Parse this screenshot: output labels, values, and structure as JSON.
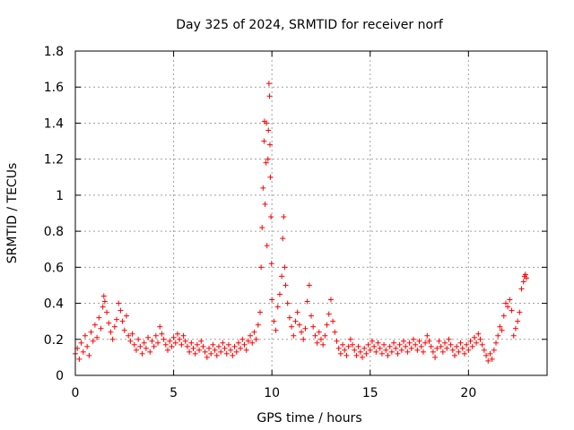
{
  "chart_data": {
    "type": "scatter",
    "title": "Day 325 of 2024, SRMTID for receiver norf",
    "xlabel": "GPS time / hours",
    "ylabel": "SRMTID / TECUs",
    "xlim": [
      0,
      24
    ],
    "ylim": [
      0,
      1.8
    ],
    "xticks": [
      0,
      5,
      10,
      15,
      20
    ],
    "yticks": [
      0,
      0.2,
      0.4,
      0.6,
      0.8,
      1,
      1.2,
      1.4,
      1.6,
      1.8
    ],
    "ytick_labels": [
      "0",
      "0.2",
      "0.4",
      "0.6",
      "0.8",
      "1",
      "1.2",
      "1.4",
      "1.6",
      "1.8"
    ],
    "grid": true,
    "marker": "+",
    "color": "#ff0000",
    "series": [
      {
        "name": "norf",
        "points": [
          [
            0.0,
            0.12
          ],
          [
            0.1,
            0.15
          ],
          [
            0.2,
            0.09
          ],
          [
            0.3,
            0.18
          ],
          [
            0.4,
            0.13
          ],
          [
            0.5,
            0.22
          ],
          [
            0.6,
            0.16
          ],
          [
            0.7,
            0.11
          ],
          [
            0.8,
            0.24
          ],
          [
            0.9,
            0.19
          ],
          [
            1.0,
            0.28
          ],
          [
            1.1,
            0.21
          ],
          [
            1.2,
            0.32
          ],
          [
            1.3,
            0.26
          ],
          [
            1.4,
            0.38
          ],
          [
            1.45,
            0.44
          ],
          [
            1.5,
            0.41
          ],
          [
            1.6,
            0.35
          ],
          [
            1.7,
            0.29
          ],
          [
            1.8,
            0.24
          ],
          [
            1.9,
            0.2
          ],
          [
            2.0,
            0.27
          ],
          [
            2.1,
            0.31
          ],
          [
            2.2,
            0.4
          ],
          [
            2.3,
            0.36
          ],
          [
            2.4,
            0.3
          ],
          [
            2.5,
            0.25
          ],
          [
            2.6,
            0.33
          ],
          [
            2.7,
            0.22
          ],
          [
            2.8,
            0.19
          ],
          [
            2.9,
            0.23
          ],
          [
            3.0,
            0.17
          ],
          [
            3.1,
            0.14
          ],
          [
            3.2,
            0.2
          ],
          [
            3.3,
            0.16
          ],
          [
            3.4,
            0.12
          ],
          [
            3.5,
            0.18
          ],
          [
            3.6,
            0.15
          ],
          [
            3.7,
            0.21
          ],
          [
            3.8,
            0.13
          ],
          [
            3.9,
            0.19
          ],
          [
            4.0,
            0.16
          ],
          [
            4.1,
            0.22
          ],
          [
            4.2,
            0.18
          ],
          [
            4.3,
            0.27
          ],
          [
            4.4,
            0.23
          ],
          [
            4.5,
            0.2
          ],
          [
            4.6,
            0.17
          ],
          [
            4.7,
            0.14
          ],
          [
            4.8,
            0.19
          ],
          [
            4.9,
            0.16
          ],
          [
            5.0,
            0.21
          ],
          [
            5.1,
            0.18
          ],
          [
            5.2,
            0.23
          ],
          [
            5.3,
            0.2
          ],
          [
            5.4,
            0.17
          ],
          [
            5.5,
            0.22
          ],
          [
            5.6,
            0.19
          ],
          [
            5.7,
            0.16
          ],
          [
            5.8,
            0.13
          ],
          [
            5.9,
            0.18
          ],
          [
            6.0,
            0.15
          ],
          [
            6.1,
            0.12
          ],
          [
            6.2,
            0.17
          ],
          [
            6.3,
            0.14
          ],
          [
            6.4,
            0.19
          ],
          [
            6.5,
            0.16
          ],
          [
            6.6,
            0.13
          ],
          [
            6.7,
            0.1
          ],
          [
            6.8,
            0.15
          ],
          [
            6.9,
            0.12
          ],
          [
            7.0,
            0.17
          ],
          [
            7.1,
            0.14
          ],
          [
            7.2,
            0.11
          ],
          [
            7.3,
            0.16
          ],
          [
            7.4,
            0.13
          ],
          [
            7.5,
            0.18
          ],
          [
            7.6,
            0.15
          ],
          [
            7.7,
            0.12
          ],
          [
            7.8,
            0.17
          ],
          [
            7.9,
            0.14
          ],
          [
            8.0,
            0.11
          ],
          [
            8.1,
            0.16
          ],
          [
            8.2,
            0.13
          ],
          [
            8.3,
            0.18
          ],
          [
            8.4,
            0.15
          ],
          [
            8.5,
            0.2
          ],
          [
            8.6,
            0.17
          ],
          [
            8.7,
            0.14
          ],
          [
            8.8,
            0.19
          ],
          [
            8.9,
            0.22
          ],
          [
            9.0,
            0.18
          ],
          [
            9.1,
            0.24
          ],
          [
            9.2,
            0.2
          ],
          [
            9.3,
            0.28
          ],
          [
            9.4,
            0.35
          ],
          [
            9.45,
            0.6
          ],
          [
            9.5,
            0.82
          ],
          [
            9.55,
            1.04
          ],
          [
            9.6,
            1.3
          ],
          [
            9.62,
            1.41
          ],
          [
            9.65,
            0.95
          ],
          [
            9.7,
            1.18
          ],
          [
            9.72,
            1.4
          ],
          [
            9.75,
            0.72
          ],
          [
            9.8,
            1.2
          ],
          [
            9.82,
            1.36
          ],
          [
            9.85,
            1.62
          ],
          [
            9.88,
            1.55
          ],
          [
            9.9,
            1.28
          ],
          [
            9.92,
            1.1
          ],
          [
            9.95,
            0.88
          ],
          [
            9.98,
            0.62
          ],
          [
            10.0,
            0.42
          ],
          [
            10.1,
            0.3
          ],
          [
            10.2,
            0.25
          ],
          [
            10.3,
            0.38
          ],
          [
            10.4,
            0.45
          ],
          [
            10.5,
            0.55
          ],
          [
            10.55,
            0.76
          ],
          [
            10.6,
            0.88
          ],
          [
            10.65,
            0.6
          ],
          [
            10.7,
            0.5
          ],
          [
            10.8,
            0.4
          ],
          [
            10.9,
            0.32
          ],
          [
            11.0,
            0.27
          ],
          [
            11.1,
            0.22
          ],
          [
            11.2,
            0.3
          ],
          [
            11.3,
            0.35
          ],
          [
            11.4,
            0.28
          ],
          [
            11.5,
            0.24
          ],
          [
            11.6,
            0.2
          ],
          [
            11.7,
            0.26
          ],
          [
            11.8,
            0.41
          ],
          [
            11.9,
            0.5
          ],
          [
            12.0,
            0.33
          ],
          [
            12.1,
            0.27
          ],
          [
            12.2,
            0.22
          ],
          [
            12.3,
            0.18
          ],
          [
            12.4,
            0.24
          ],
          [
            12.5,
            0.2
          ],
          [
            12.6,
            0.17
          ],
          [
            12.7,
            0.22
          ],
          [
            12.8,
            0.28
          ],
          [
            12.9,
            0.34
          ],
          [
            13.0,
            0.42
          ],
          [
            13.1,
            0.3
          ],
          [
            13.2,
            0.24
          ],
          [
            13.3,
            0.19
          ],
          [
            13.4,
            0.15
          ],
          [
            13.5,
            0.12
          ],
          [
            13.6,
            0.17
          ],
          [
            13.7,
            0.14
          ],
          [
            13.8,
            0.11
          ],
          [
            13.9,
            0.16
          ],
          [
            14.0,
            0.2
          ],
          [
            14.1,
            0.17
          ],
          [
            14.2,
            0.14
          ],
          [
            14.3,
            0.11
          ],
          [
            14.4,
            0.16
          ],
          [
            14.5,
            0.13
          ],
          [
            14.6,
            0.1
          ],
          [
            14.7,
            0.15
          ],
          [
            14.8,
            0.12
          ],
          [
            14.9,
            0.17
          ],
          [
            15.0,
            0.14
          ],
          [
            15.1,
            0.19
          ],
          [
            15.2,
            0.16
          ],
          [
            15.3,
            0.13
          ],
          [
            15.4,
            0.18
          ],
          [
            15.5,
            0.15
          ],
          [
            15.6,
            0.12
          ],
          [
            15.7,
            0.17
          ],
          [
            15.8,
            0.14
          ],
          [
            15.9,
            0.11
          ],
          [
            16.0,
            0.16
          ],
          [
            16.1,
            0.13
          ],
          [
            16.2,
            0.18
          ],
          [
            16.3,
            0.15
          ],
          [
            16.4,
            0.12
          ],
          [
            16.5,
            0.17
          ],
          [
            16.6,
            0.14
          ],
          [
            16.7,
            0.19
          ],
          [
            16.8,
            0.16
          ],
          [
            16.9,
            0.13
          ],
          [
            17.0,
            0.18
          ],
          [
            17.1,
            0.15
          ],
          [
            17.2,
            0.2
          ],
          [
            17.3,
            0.17
          ],
          [
            17.4,
            0.14
          ],
          [
            17.5,
            0.19
          ],
          [
            17.6,
            0.16
          ],
          [
            17.7,
            0.13
          ],
          [
            17.8,
            0.18
          ],
          [
            17.9,
            0.22
          ],
          [
            18.0,
            0.19
          ],
          [
            18.1,
            0.16
          ],
          [
            18.2,
            0.13
          ],
          [
            18.3,
            0.1
          ],
          [
            18.4,
            0.15
          ],
          [
            18.5,
            0.19
          ],
          [
            18.6,
            0.16
          ],
          [
            18.7,
            0.13
          ],
          [
            18.8,
            0.18
          ],
          [
            18.9,
            0.15
          ],
          [
            19.0,
            0.2
          ],
          [
            19.1,
            0.17
          ],
          [
            19.2,
            0.14
          ],
          [
            19.3,
            0.11
          ],
          [
            19.4,
            0.16
          ],
          [
            19.5,
            0.13
          ],
          [
            19.6,
            0.18
          ],
          [
            19.7,
            0.15
          ],
          [
            19.8,
            0.12
          ],
          [
            19.9,
            0.17
          ],
          [
            20.0,
            0.14
          ],
          [
            20.1,
            0.19
          ],
          [
            20.2,
            0.16
          ],
          [
            20.3,
            0.21
          ],
          [
            20.4,
            0.18
          ],
          [
            20.5,
            0.23
          ],
          [
            20.6,
            0.2
          ],
          [
            20.7,
            0.17
          ],
          [
            20.8,
            0.14
          ],
          [
            20.9,
            0.11
          ],
          [
            21.0,
            0.08
          ],
          [
            21.1,
            0.12
          ],
          [
            21.2,
            0.09
          ],
          [
            21.3,
            0.14
          ],
          [
            21.4,
            0.18
          ],
          [
            21.5,
            0.22
          ],
          [
            21.6,
            0.27
          ],
          [
            21.7,
            0.25
          ],
          [
            21.8,
            0.33
          ],
          [
            21.9,
            0.4
          ],
          [
            22.0,
            0.38
          ],
          [
            22.1,
            0.42
          ],
          [
            22.2,
            0.36
          ],
          [
            22.3,
            0.22
          ],
          [
            22.4,
            0.26
          ],
          [
            22.5,
            0.3
          ],
          [
            22.6,
            0.35
          ],
          [
            22.7,
            0.48
          ],
          [
            22.8,
            0.52
          ],
          [
            22.85,
            0.55
          ],
          [
            22.9,
            0.56
          ],
          [
            22.95,
            0.54
          ]
        ]
      }
    ]
  }
}
